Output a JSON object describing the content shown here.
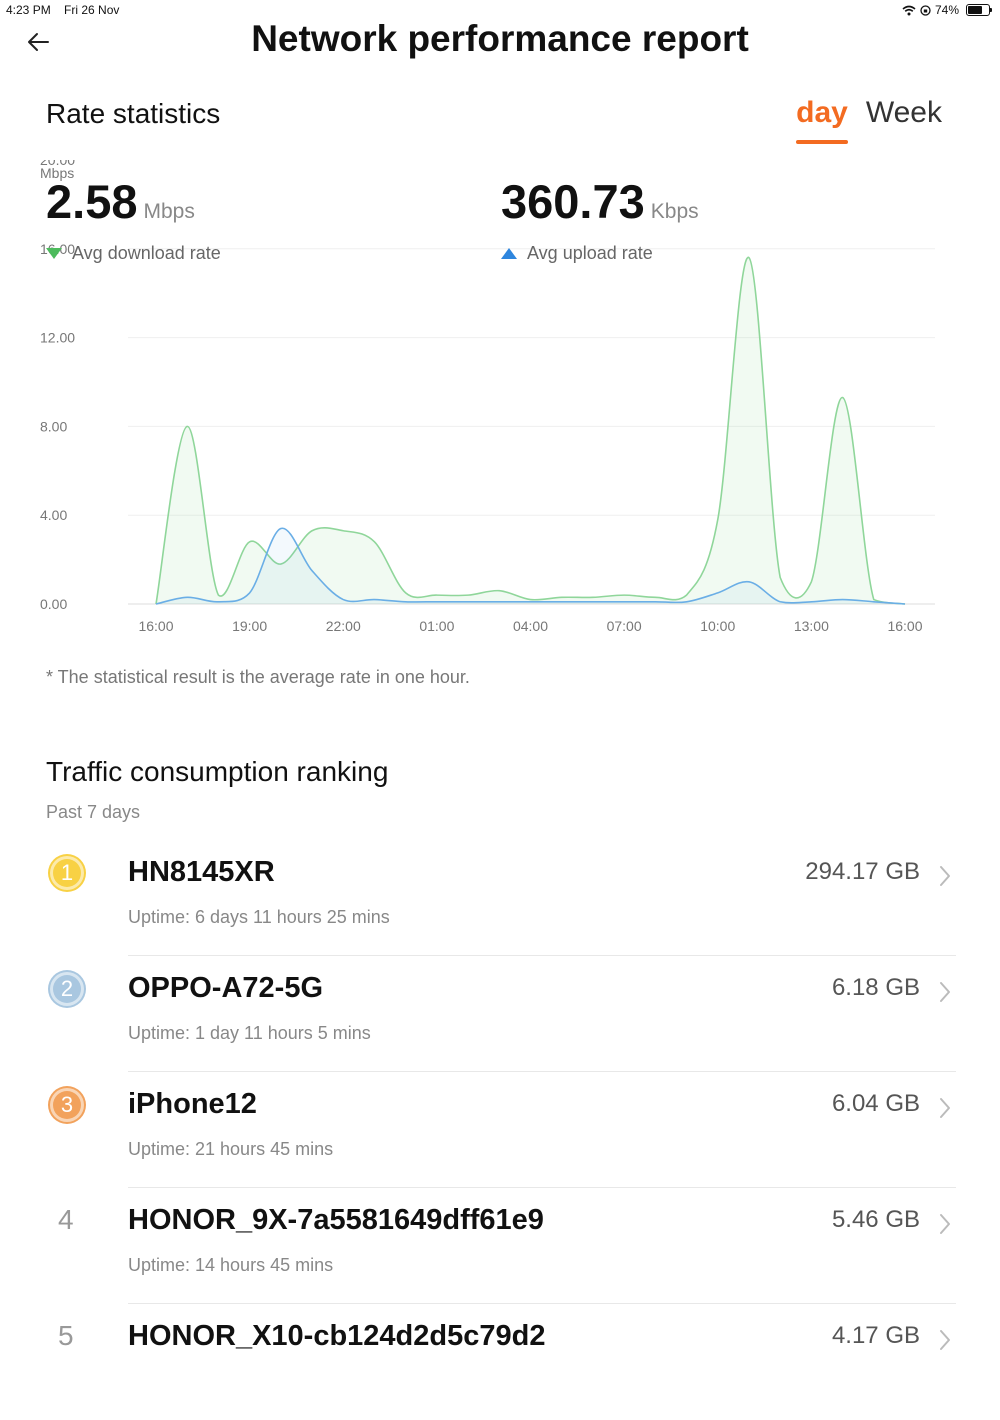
{
  "status_bar": {
    "time": "4:23 PM",
    "date": "Fri 26 Nov",
    "battery": "74%",
    "battery_level": 0.74
  },
  "header": {
    "title": "Network performance report",
    "back_icon": "arrow-left-icon"
  },
  "rate_section": {
    "title": "Rate statistics",
    "tabs": [
      {
        "label": "day",
        "active": true
      },
      {
        "label": "Week",
        "active": false
      }
    ],
    "download": {
      "value": "2.58",
      "unit": "Mbps",
      "label": "Avg download rate",
      "color": "#4cbb5c"
    },
    "upload": {
      "value": "360.73",
      "unit": "Kbps",
      "label": "Avg upload rate",
      "color": "#2e86de"
    },
    "footnote": "* The statistical result is the average rate in one hour."
  },
  "chart_data": {
    "type": "area",
    "ylabel": "Mbps",
    "ylim": [
      0,
      20
    ],
    "y_ticks": [
      "20.00",
      "16.00",
      "12.00",
      "8.00",
      "4.00",
      "0.00"
    ],
    "x_ticks": [
      "16:00",
      "19:00",
      "22:00",
      "01:00",
      "04:00",
      "07:00",
      "10:00",
      "13:00",
      "16:00"
    ],
    "x_hours": [
      0,
      1,
      2,
      3,
      4,
      5,
      6,
      7,
      8,
      9,
      10,
      11,
      12,
      13,
      14,
      15,
      16,
      17,
      18,
      19,
      20,
      21,
      22,
      23,
      24
    ],
    "grid": true,
    "series": [
      {
        "name": "Avg download rate",
        "color": "#8fd69a",
        "values": [
          0.0,
          8.0,
          0.4,
          2.8,
          1.8,
          3.3,
          3.3,
          2.8,
          0.5,
          0.4,
          0.4,
          0.6,
          0.2,
          0.3,
          0.3,
          0.4,
          0.3,
          0.4,
          3.8,
          15.6,
          1.2,
          1.0,
          9.3,
          0.2,
          0.0
        ]
      },
      {
        "name": "Avg upload rate",
        "color": "#6aaee6",
        "values": [
          0.0,
          0.3,
          0.1,
          0.5,
          3.4,
          1.5,
          0.2,
          0.2,
          0.1,
          0.1,
          0.1,
          0.1,
          0.1,
          0.1,
          0.1,
          0.1,
          0.1,
          0.1,
          0.5,
          1.0,
          0.1,
          0.1,
          0.2,
          0.1,
          0.0
        ]
      }
    ]
  },
  "ranking": {
    "title": "Traffic consumption ranking",
    "subtitle": "Past 7 days",
    "items": [
      {
        "rank": "1",
        "name": "HN8145XR",
        "size": "294.17 GB",
        "uptime": "Uptime: 6 days 11 hours 25 mins",
        "badge_color": "#f8d144"
      },
      {
        "rank": "2",
        "name": "OPPO-A72-5G",
        "size": "6.18 GB",
        "uptime": "Uptime: 1 day 11 hours 5 mins",
        "badge_color": "#a9c7e0"
      },
      {
        "rank": "3",
        "name": "iPhone12",
        "size": "6.04 GB",
        "uptime": "Uptime: 21 hours 45 mins",
        "badge_color": "#f2a25c"
      },
      {
        "rank": "4",
        "name": "HONOR_9X-7a5581649dff61e9",
        "size": "5.46 GB",
        "uptime": "Uptime: 14 hours 45 mins"
      },
      {
        "rank": "5",
        "name": "HONOR_X10-cb124d2d5c79d2",
        "size": "4.17 GB",
        "uptime": ""
      }
    ]
  }
}
